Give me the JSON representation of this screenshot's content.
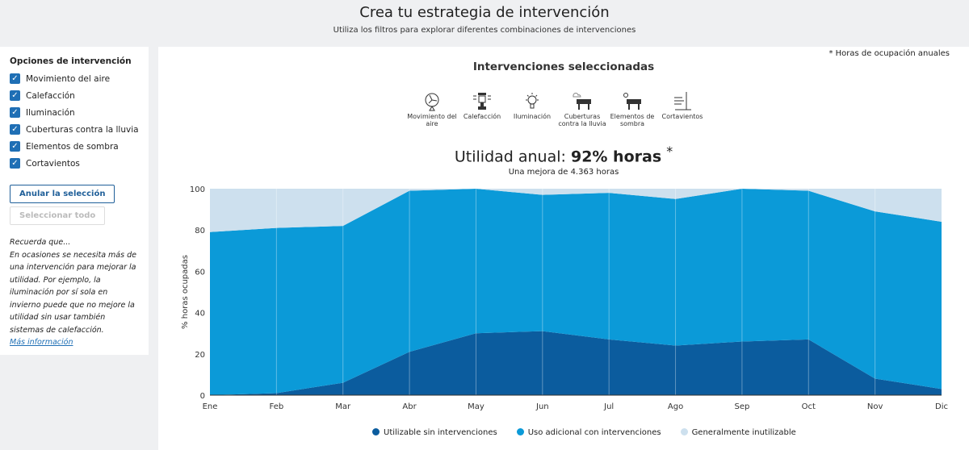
{
  "header": {
    "title": "Crea tu estrategia de intervención",
    "subtitle": "Utiliza los filtros para explorar diferentes combinaciones de intervenciones"
  },
  "sidebar": {
    "heading": "Opciones de intervención",
    "options": [
      {
        "label": "Movimiento del aire",
        "checked": true
      },
      {
        "label": "Calefacción",
        "checked": true
      },
      {
        "label": "Iluminación",
        "checked": true
      },
      {
        "label": "Cuberturas contra la lluvia",
        "checked": true
      },
      {
        "label": "Elementos de sombra",
        "checked": true
      },
      {
        "label": "Cortavientos",
        "checked": true
      }
    ],
    "clear_button": "Anular la selección",
    "select_all_button": "Seleccionar todo",
    "note_title": "Recuerda que...",
    "note_body": "En ocasiones se necesita más de una intervención para mejorar la utilidad. Por ejemplo, la iluminación por sí sola en invierno puede que no mejore la utilidad sin usar también sistemas de calefacción.",
    "more_link": "Más información"
  },
  "main": {
    "footnote": "* Horas de ocupación anuales",
    "selected_heading": "Intervenciones seleccionadas",
    "interventions": [
      {
        "label": "Movimiento del aire",
        "icon": "fan-icon"
      },
      {
        "label": "Calefacción",
        "icon": "heater-icon"
      },
      {
        "label": "Iluminación",
        "icon": "lightbulb-icon"
      },
      {
        "label": "Cuberturas contra la lluvia",
        "icon": "rain-canopy-icon"
      },
      {
        "label": "Elementos de sombra",
        "icon": "sun-canopy-icon"
      },
      {
        "label": "Cortavientos",
        "icon": "windbreak-icon"
      }
    ],
    "utility_prefix": "Utilidad anual: ",
    "utility_value": "92% horas",
    "utility_star": "*",
    "improvement": "Una mejora de 4.363 horas"
  },
  "chart_data": {
    "type": "area",
    "stacked": true,
    "ylabel": "% horas ocupadas",
    "ylim": [
      0,
      100
    ],
    "yticks": [
      0,
      20,
      40,
      60,
      80,
      100
    ],
    "grid": "vertical",
    "categories": [
      "Ene",
      "Feb",
      "Mar",
      "Abr",
      "May",
      "Jun",
      "Jul",
      "Ago",
      "Sep",
      "Oct",
      "Nov",
      "Dic"
    ],
    "series": [
      {
        "name": "Utilizable sin intervenciones",
        "color": "#0b5c9e",
        "values": [
          0,
          1,
          6,
          21,
          30,
          31,
          27,
          24,
          26,
          27,
          8,
          3
        ]
      },
      {
        "name": "Uso adicional con intervenciones",
        "color": "#0b9ad8",
        "values": [
          79,
          80,
          76,
          78,
          70,
          66,
          71,
          71,
          74,
          72,
          81,
          81
        ]
      },
      {
        "name": "Generalmente inutilizable",
        "color": "#cde0ee",
        "values": [
          21,
          19,
          18,
          1,
          0,
          3,
          2,
          5,
          0,
          1,
          11,
          16
        ]
      }
    ]
  }
}
